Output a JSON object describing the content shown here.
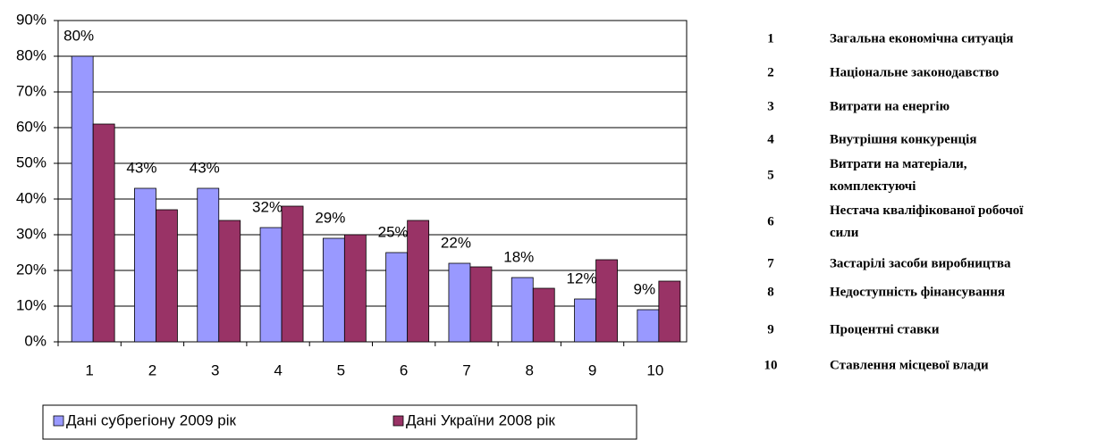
{
  "chart_data": {
    "type": "bar",
    "categories": [
      "1",
      "2",
      "3",
      "4",
      "5",
      "6",
      "7",
      "8",
      "9",
      "10"
    ],
    "series": [
      {
        "name": "Дані субрегіону 2009 рік",
        "color": "#9999ff",
        "values": [
          80,
          43,
          43,
          32,
          29,
          25,
          22,
          18,
          12,
          9
        ],
        "value_labels": [
          "80%",
          "43%",
          "43%",
          "32%",
          "29%",
          "25%",
          "22%",
          "18%",
          "12%",
          "9%"
        ]
      },
      {
        "name": "Дані України 2008 рік",
        "color": "#993366",
        "values": [
          61,
          37,
          34,
          38,
          30,
          34,
          21,
          15,
          23,
          17
        ]
      }
    ],
    "ylim": [
      0,
      90
    ],
    "yticks": [
      {
        "value": 0,
        "label": "0%"
      },
      {
        "value": 10,
        "label": "10%"
      },
      {
        "value": 20,
        "label": "20%"
      },
      {
        "value": 30,
        "label": "30%"
      },
      {
        "value": 40,
        "label": "40%"
      },
      {
        "value": 50,
        "label": "50%"
      },
      {
        "value": 60,
        "label": "60%"
      },
      {
        "value": 70,
        "label": "70%"
      },
      {
        "value": 80,
        "label": "80%"
      },
      {
        "value": 90,
        "label": "90%"
      }
    ],
    "grid": true
  },
  "factors": [
    {
      "num": "1",
      "lines": [
        "Загальна економічна ситуація"
      ]
    },
    {
      "num": "2",
      "lines": [
        "Національне законодавство"
      ]
    },
    {
      "num": "3",
      "lines": [
        "Витрати на енергію"
      ]
    },
    {
      "num": "4",
      "lines": [
        "Внутрішня конкуренція"
      ]
    },
    {
      "num": "5",
      "lines": [
        "Витрати на матеріали,",
        "комплектуючі"
      ]
    },
    {
      "num": "6",
      "lines": [
        "Нестача кваліфікованої робочої",
        "сили"
      ]
    },
    {
      "num": "7",
      "lines": [
        "Застарілі засоби виробництва"
      ]
    },
    {
      "num": "8",
      "lines": [
        "Недоступність фінансування"
      ]
    },
    {
      "num": "9",
      "lines": [
        "Процентні ставки"
      ]
    },
    {
      "num": "10",
      "lines": [
        "Ставлення місцевої влади"
      ]
    }
  ]
}
